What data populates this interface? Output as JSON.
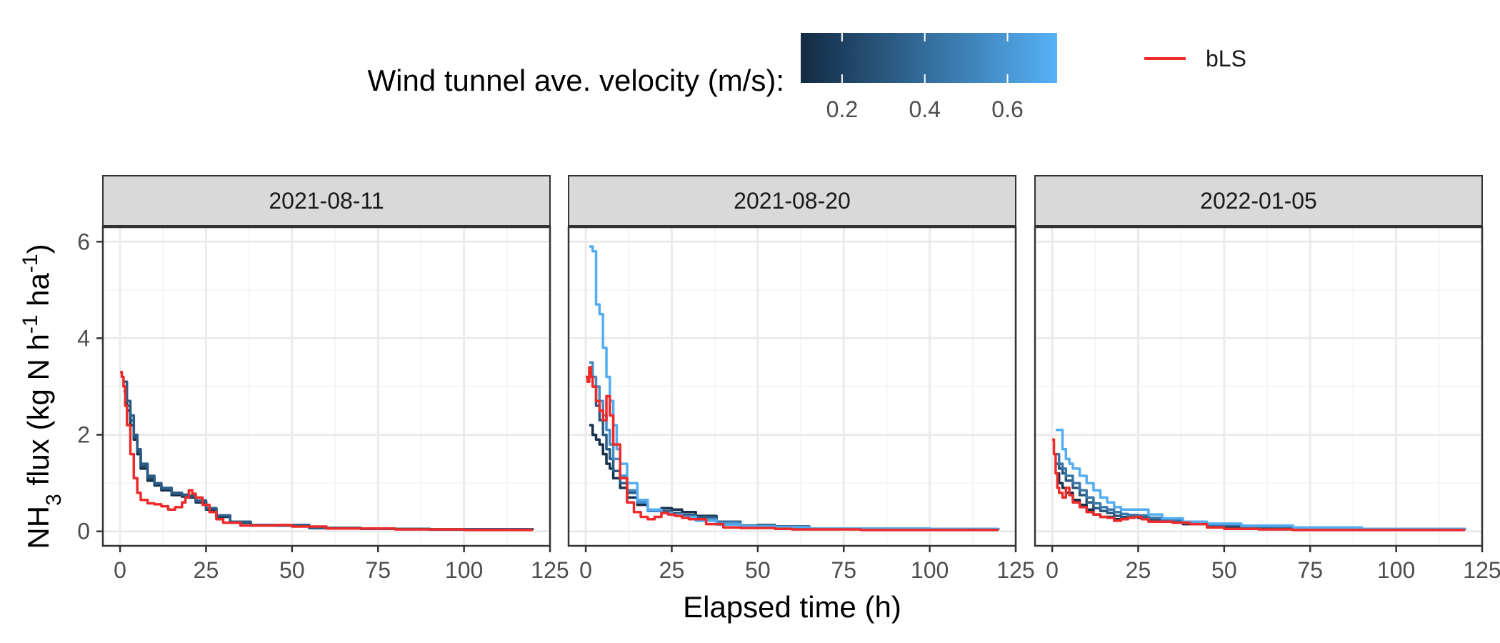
{
  "chart_data": {
    "type": "line",
    "xlabel": "Elapsed time (h)",
    "ylabel": {
      "base": "NH",
      "sub": "3",
      "rest": " flux (kg N h",
      "sup1": "-1",
      "mid": " ha",
      "sup2": "-1",
      "close": ")"
    },
    "xlim": [
      -5,
      125
    ],
    "ylim": [
      -0.3,
      6.3
    ],
    "x_ticks": [
      0,
      25,
      50,
      75,
      100,
      125
    ],
    "y_ticks": [
      0,
      2,
      4,
      6
    ],
    "grid": true,
    "legend": {
      "position": "top",
      "colorbar": {
        "title": "Wind tunnel ave. velocity (m/s):",
        "min": 0.1,
        "max": 0.72,
        "ticks": [
          0.2,
          0.4,
          0.6
        ],
        "colors": [
          "#132B43",
          "#56B1F7"
        ]
      },
      "line": {
        "name": "bLS",
        "color": "#EE2A2A"
      }
    },
    "panels": [
      {
        "label": "2021-08-11",
        "series": [
          {
            "name": "",
            "velocity": 0.12,
            "x": [
              1,
              2,
              3,
              4,
              5,
              6,
              8,
              10,
              12,
              15,
              18,
              20,
              22,
              25,
              28,
              32,
              38,
              45,
              55,
              70,
              90,
              120
            ],
            "y": [
              3.0,
              2.5,
              2.2,
              1.9,
              1.6,
              1.3,
              1.05,
              0.95,
              0.85,
              0.75,
              0.72,
              0.7,
              0.6,
              0.45,
              0.3,
              0.18,
              0.12,
              0.12,
              0.07,
              0.05,
              0.04,
              0.03
            ]
          },
          {
            "name": "",
            "velocity": 0.27,
            "x": [
              1,
              2,
              3,
              4,
              5,
              6,
              8,
              10,
              12,
              15,
              18,
              20,
              22,
              25,
              28,
              32,
              38,
              45,
              55,
              70,
              90,
              120
            ],
            "y": [
              2.9,
              2.6,
              2.3,
              1.95,
              1.65,
              1.35,
              1.1,
              0.98,
              0.88,
              0.78,
              0.74,
              0.72,
              0.62,
              0.47,
              0.32,
              0.19,
              0.13,
              0.13,
              0.07,
              0.05,
              0.04,
              0.03
            ]
          },
          {
            "name": "",
            "velocity": 0.33,
            "x": [
              1,
              2,
              3,
              4,
              5,
              6,
              8,
              10,
              12,
              15,
              18,
              20,
              22,
              25,
              28,
              32,
              38,
              45,
              55,
              70,
              90,
              120
            ],
            "y": [
              3.1,
              2.7,
              2.4,
              2.0,
              1.7,
              1.4,
              1.15,
              1.0,
              0.9,
              0.8,
              0.76,
              0.74,
              0.64,
              0.48,
              0.33,
              0.2,
              0.13,
              0.13,
              0.07,
              0.05,
              0.04,
              0.03
            ]
          },
          {
            "name": "bLS",
            "x": [
              0,
              0.5,
              1,
              1.5,
              2,
              3,
              4,
              5,
              6,
              8,
              10,
              12,
              14,
              16,
              18,
              19,
              20,
              21,
              22,
              24,
              26,
              28,
              30,
              35,
              40,
              45,
              50,
              60,
              70,
              80,
              100,
              120
            ],
            "y": [
              3.3,
              3.2,
              3.0,
              2.6,
              2.2,
              1.6,
              1.1,
              0.8,
              0.65,
              0.58,
              0.56,
              0.52,
              0.45,
              0.5,
              0.6,
              0.7,
              0.85,
              0.78,
              0.7,
              0.55,
              0.4,
              0.25,
              0.18,
              0.12,
              0.12,
              0.13,
              0.1,
              0.06,
              0.06,
              0.04,
              0.03,
              0.03
            ]
          }
        ]
      },
      {
        "label": "2021-08-20",
        "series": [
          {
            "name": "",
            "velocity": 0.13,
            "x": [
              1,
              2,
              3,
              4,
              5,
              6,
              7,
              8,
              10,
              12,
              15,
              18,
              22,
              25,
              28,
              32,
              38,
              45,
              50,
              55,
              65,
              80,
              100,
              120
            ],
            "y": [
              2.2,
              2.0,
              1.9,
              1.8,
              1.6,
              1.4,
              1.3,
              1.1,
              0.9,
              0.7,
              0.55,
              0.45,
              0.48,
              0.45,
              0.4,
              0.32,
              0.2,
              0.12,
              0.13,
              0.1,
              0.06,
              0.05,
              0.04,
              0.03
            ]
          },
          {
            "name": "",
            "velocity": 0.32,
            "x": [
              1,
              2,
              3,
              4,
              5,
              6,
              7,
              8,
              10,
              12,
              15,
              18,
              22,
              25,
              28,
              32,
              38,
              45,
              50,
              55,
              65,
              80,
              100,
              120
            ],
            "y": [
              3.3,
              3.0,
              2.6,
              2.3,
              2.0,
              1.7,
              1.5,
              1.25,
              1.0,
              0.8,
              0.6,
              0.45,
              0.42,
              0.38,
              0.34,
              0.3,
              0.2,
              0.12,
              0.12,
              0.1,
              0.06,
              0.05,
              0.04,
              0.03
            ]
          },
          {
            "name": "",
            "velocity": 0.55,
            "x": [
              1,
              2,
              3,
              4,
              5,
              6,
              7,
              8,
              10,
              12,
              15,
              18,
              22,
              25,
              28,
              32,
              38,
              45,
              50,
              55,
              65,
              80,
              100,
              120
            ],
            "y": [
              3.5,
              3.2,
              3.0,
              2.7,
              2.4,
              2.1,
              1.8,
              1.5,
              1.15,
              0.85,
              0.6,
              0.42,
              0.38,
              0.35,
              0.3,
              0.25,
              0.18,
              0.11,
              0.11,
              0.09,
              0.06,
              0.05,
              0.04,
              0.03
            ]
          },
          {
            "name": "",
            "velocity": 0.7,
            "x": [
              1,
              2,
              3,
              4,
              5,
              6,
              7,
              8,
              9,
              10,
              12,
              15,
              18,
              22,
              25,
              28,
              32,
              38,
              45,
              55,
              65,
              80,
              100,
              120
            ],
            "y": [
              5.9,
              5.8,
              4.7,
              4.5,
              3.8,
              3.2,
              2.7,
              2.2,
              1.7,
              1.4,
              1.0,
              0.65,
              0.45,
              0.38,
              0.34,
              0.3,
              0.22,
              0.14,
              0.1,
              0.08,
              0.06,
              0.06,
              0.05,
              0.04
            ]
          },
          {
            "name": "bLS",
            "x": [
              0,
              0.5,
              1,
              1.5,
              2,
              3,
              4,
              5,
              6,
              7,
              8,
              10,
              12,
              14,
              16,
              18,
              20,
              22,
              24,
              26,
              28,
              30,
              35,
              40,
              45,
              50,
              55,
              60,
              70,
              80,
              100,
              120
            ],
            "y": [
              3.2,
              3.1,
              3.4,
              3.2,
              3.0,
              2.7,
              2.5,
              2.3,
              2.8,
              2.4,
              1.8,
              1.1,
              0.6,
              0.4,
              0.3,
              0.25,
              0.3,
              0.38,
              0.35,
              0.32,
              0.28,
              0.25,
              0.15,
              0.08,
              0.07,
              0.07,
              0.05,
              0.04,
              0.04,
              0.03,
              0.03,
              0.03
            ]
          }
        ]
      },
      {
        "label": "2022-01-05",
        "series": [
          {
            "name": "",
            "velocity": 0.12,
            "x": [
              1,
              2,
              3,
              4,
              6,
              8,
              10,
              12,
              14,
              16,
              18,
              20,
              22,
              25,
              28,
              32,
              38,
              45,
              55,
              70,
              90,
              120
            ],
            "y": [
              1.2,
              1.0,
              0.9,
              0.8,
              0.65,
              0.55,
              0.45,
              0.35,
              0.3,
              0.3,
              0.25,
              0.25,
              0.3,
              0.28,
              0.22,
              0.2,
              0.15,
              0.1,
              0.07,
              0.05,
              0.04,
              0.03
            ]
          },
          {
            "name": "",
            "velocity": 0.3,
            "x": [
              1,
              2,
              3,
              4,
              6,
              8,
              10,
              12,
              14,
              16,
              18,
              20,
              22,
              25,
              28,
              32,
              38,
              45,
              55,
              70,
              90,
              120
            ],
            "y": [
              1.4,
              1.3,
              1.2,
              1.05,
              0.9,
              0.75,
              0.6,
              0.48,
              0.42,
              0.38,
              0.32,
              0.3,
              0.3,
              0.3,
              0.25,
              0.22,
              0.17,
              0.12,
              0.08,
              0.06,
              0.04,
              0.03
            ]
          },
          {
            "name": "",
            "velocity": 0.45,
            "x": [
              1,
              2,
              3,
              4,
              6,
              8,
              10,
              12,
              14,
              16,
              18,
              20,
              22,
              25,
              28,
              32,
              38,
              45,
              55,
              70,
              90,
              120
            ],
            "y": [
              1.6,
              1.4,
              1.3,
              1.15,
              1.0,
              0.85,
              0.7,
              0.58,
              0.5,
              0.45,
              0.4,
              0.36,
              0.34,
              0.33,
              0.28,
              0.24,
              0.19,
              0.14,
              0.1,
              0.07,
              0.05,
              0.04
            ]
          },
          {
            "name": "",
            "velocity": 0.7,
            "x": [
              1,
              2,
              3,
              4,
              5,
              6,
              8,
              10,
              12,
              14,
              16,
              18,
              20,
              22,
              25,
              28,
              32,
              38,
              45,
              55,
              70,
              90,
              120
            ],
            "y": [
              2.1,
              2.1,
              1.7,
              1.5,
              1.4,
              1.3,
              1.15,
              1.0,
              0.85,
              0.7,
              0.6,
              0.5,
              0.45,
              0.45,
              0.45,
              0.35,
              0.27,
              0.2,
              0.16,
              0.12,
              0.08,
              0.05,
              0.04
            ]
          },
          {
            "name": "bLS",
            "x": [
              0,
              0.5,
              1,
              1.5,
              2,
              3,
              4,
              5,
              6,
              8,
              10,
              12,
              14,
              16,
              18,
              20,
              22,
              24,
              26,
              28,
              30,
              35,
              40,
              45,
              50,
              60,
              70,
              80,
              100,
              120
            ],
            "y": [
              1.9,
              1.6,
              1.2,
              0.9,
              0.8,
              0.7,
              0.9,
              0.75,
              0.6,
              0.5,
              0.4,
              0.35,
              0.3,
              0.28,
              0.22,
              0.25,
              0.28,
              0.3,
              0.25,
              0.2,
              0.2,
              0.18,
              0.15,
              0.08,
              0.05,
              0.04,
              0.03,
              0.03,
              0.03,
              0.03
            ]
          }
        ]
      }
    ]
  }
}
